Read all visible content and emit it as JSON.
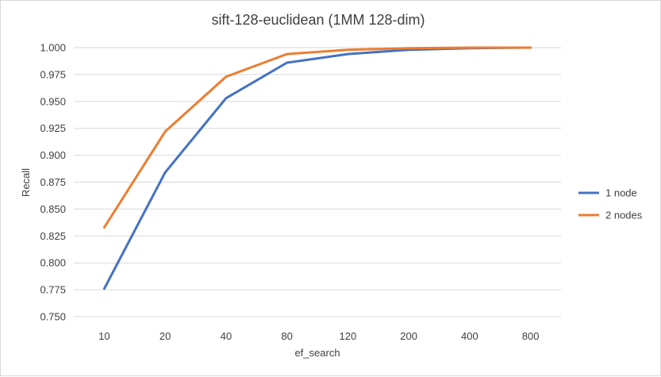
{
  "chart_data": {
    "type": "line",
    "title": "sift-128-euclidean (1MM 128-dim)",
    "xlabel": "ef_search",
    "ylabel": "Recall",
    "categories": [
      "10",
      "20",
      "40",
      "80",
      "120",
      "200",
      "400",
      "800"
    ],
    "ylim": [
      0.75,
      1.0
    ],
    "yticks": [
      "0.750",
      "0.775",
      "0.800",
      "0.825",
      "0.850",
      "0.875",
      "0.900",
      "0.925",
      "0.950",
      "0.975",
      "1.000"
    ],
    "grid": "horizontal",
    "legend": "right",
    "series": [
      {
        "name": "1 node",
        "color": "#4472c4",
        "values": [
          0.776,
          0.884,
          0.953,
          0.986,
          0.994,
          0.998,
          0.9995,
          1.0
        ]
      },
      {
        "name": "2 nodes",
        "color": "#ed7d31",
        "values": [
          0.833,
          0.922,
          0.973,
          0.994,
          0.998,
          0.9995,
          1.0,
          1.0
        ]
      }
    ]
  }
}
